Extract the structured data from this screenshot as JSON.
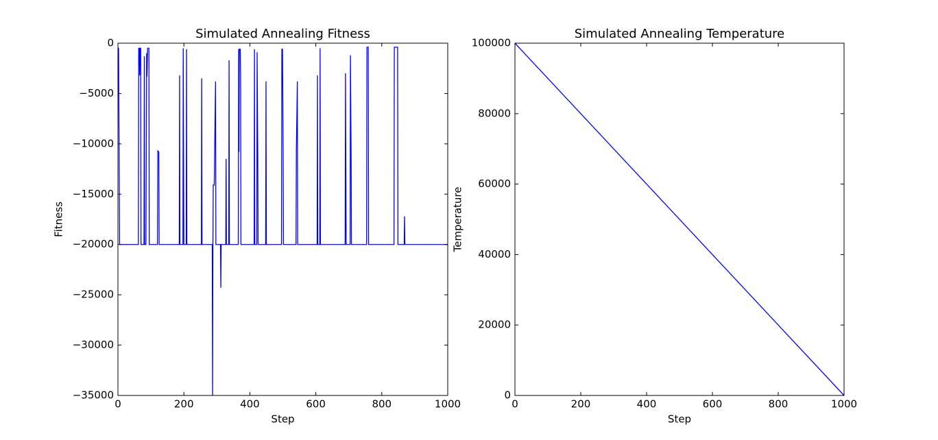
{
  "chart_data": [
    {
      "type": "line",
      "title": "Simulated Annealing Fitness",
      "xlabel": "Step",
      "ylabel": "Fitness",
      "xlim": [
        0,
        1000
      ],
      "ylim": [
        -35000,
        0
      ],
      "xticks": [
        0,
        200,
        400,
        600,
        800,
        1000
      ],
      "yticks": [
        {
          "value": -35000,
          "label": "−35000"
        },
        {
          "value": -30000,
          "label": "−30000"
        },
        {
          "value": -25000,
          "label": "−25000"
        },
        {
          "value": -20000,
          "label": "−20000"
        },
        {
          "value": -15000,
          "label": "−15000"
        },
        {
          "value": -10000,
          "label": "−10000"
        },
        {
          "value": -5000,
          "label": "−5000"
        },
        0
      ],
      "color": "#0000ff",
      "x": [
        0,
        2,
        5,
        62,
        63,
        65,
        66,
        67,
        69,
        70,
        79,
        80,
        81,
        85,
        87,
        88,
        90,
        94,
        95,
        120,
        121,
        124,
        125,
        186,
        187,
        188,
        197,
        198,
        200,
        207,
        208,
        209,
        253,
        254,
        255,
        286,
        287,
        288,
        289,
        292,
        296,
        297,
        300,
        311,
        312,
        313,
        327,
        328,
        329,
        336,
        337,
        338,
        365,
        366,
        367,
        368,
        371,
        372,
        373,
        413,
        414,
        415,
        421,
        422,
        424,
        425,
        448,
        449,
        450,
        496,
        497,
        499,
        501,
        502,
        540,
        541,
        544,
        545,
        604,
        605,
        606,
        612,
        613,
        614,
        689,
        690,
        692,
        704,
        705,
        707,
        708,
        754,
        755,
        759,
        760,
        837,
        838,
        848,
        849,
        868,
        869,
        870,
        1000
      ],
      "values": [
        -500,
        -500,
        -20000,
        -20000,
        -500,
        -500,
        -3200,
        -500,
        -500,
        -20000,
        -20000,
        -1300,
        -20000,
        -20000,
        -1000,
        -3300,
        -500,
        -500,
        -20000,
        -20000,
        -10700,
        -10800,
        -20000,
        -20000,
        -3200,
        -20000,
        -20000,
        -500,
        -20000,
        -20000,
        -600,
        -20000,
        -20000,
        -3500,
        -20000,
        -20000,
        -35000,
        -20000,
        -14100,
        -14100,
        -3800,
        -20000,
        -20000,
        -20000,
        -24300,
        -20000,
        -20000,
        -11500,
        -20000,
        -20000,
        -1700,
        -20000,
        -20000,
        -600,
        -10800,
        -600,
        -600,
        -3300,
        -20000,
        -20000,
        -600,
        -20000,
        -20000,
        -900,
        -11000,
        -20000,
        -20000,
        -3800,
        -20000,
        -20000,
        -600,
        -600,
        -11200,
        -20000,
        -20000,
        -10600,
        -3800,
        -20000,
        -20000,
        -3200,
        -20000,
        -20000,
        -500,
        -20000,
        -20000,
        -3000,
        -20000,
        -20000,
        -1200,
        -10800,
        -20000,
        -20000,
        -400,
        -400,
        -20000,
        -20000,
        -400,
        -400,
        -20000,
        -20000,
        -17200,
        -20000,
        -20000
      ]
    },
    {
      "type": "line",
      "title": "Simulated Annealing Temperature",
      "xlabel": "Step",
      "ylabel": "Temperature",
      "xlim": [
        0,
        1000
      ],
      "ylim": [
        0,
        100000
      ],
      "xticks": [
        0,
        200,
        400,
        600,
        800,
        1000
      ],
      "yticks": [
        0,
        20000,
        40000,
        60000,
        80000,
        100000
      ],
      "color": "#0000ff",
      "x": [
        0,
        1000
      ],
      "values": [
        100000,
        0
      ]
    }
  ]
}
